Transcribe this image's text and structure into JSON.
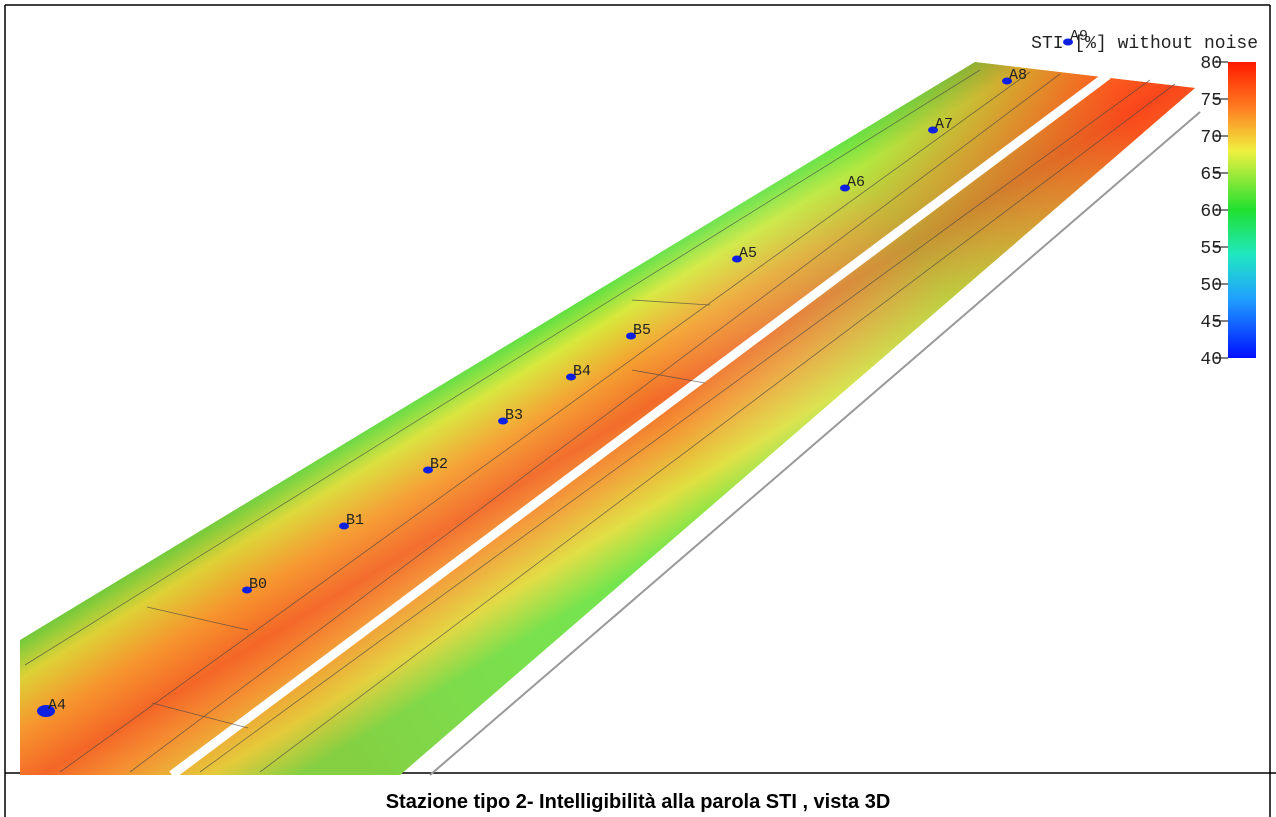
{
  "plot": {
    "title": "STI [%] without noise",
    "colorbar": {
      "range": [
        40,
        80
      ],
      "ticks": [
        40,
        45,
        50,
        55,
        60,
        65,
        70,
        75,
        80
      ]
    },
    "sources": [
      {
        "label": "A9"
      },
      {
        "label": "A8"
      },
      {
        "label": "A7"
      },
      {
        "label": "A6"
      },
      {
        "label": "A5"
      },
      {
        "label": "B5"
      },
      {
        "label": "B4"
      },
      {
        "label": "B3"
      },
      {
        "label": "B2"
      },
      {
        "label": "B1"
      },
      {
        "label": "B0"
      },
      {
        "label": "A4"
      }
    ]
  },
  "caption": "Stazione tipo 2- Intelligibilità alla parola STI , vista 3D"
}
